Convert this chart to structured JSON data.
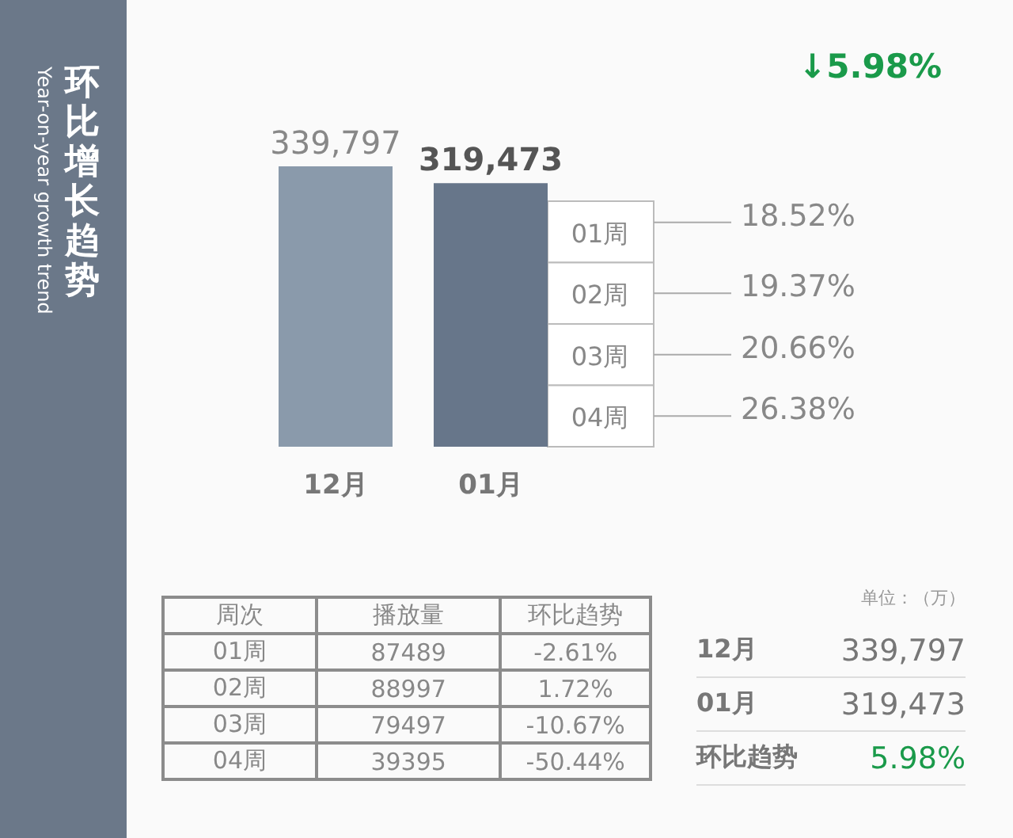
{
  "chart_data": {
    "type": "bar",
    "title": "环比增长趋势",
    "subtitle": "Year-on-year growth trend",
    "categories": [
      "12月",
      "01月"
    ],
    "values": [
      339797,
      319473
    ],
    "colors": [
      "#8a9aab",
      "#67768a"
    ],
    "value_labels": [
      "339,797",
      "319,473"
    ],
    "annotations": [
      "↓5.98%",
      "01周",
      "18.52%",
      "02周",
      "19.37%",
      "03周",
      "20.66%",
      "04周",
      "26.38%",
      "周次",
      "播放量",
      "环比趋势",
      "01周",
      "87489",
      "-2.61%",
      "02周",
      "88997",
      "1.72%",
      "03周",
      "79497",
      "-10.67%",
      "04周",
      "39395",
      "-50.44%",
      "单位：（万）",
      "12月",
      "339,797",
      "01月",
      "319,473",
      "环比趋势",
      "5.98%"
    ]
  }
}
